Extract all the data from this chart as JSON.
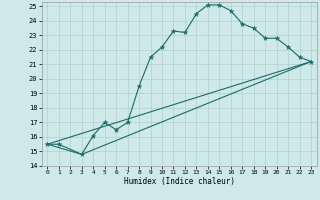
{
  "xlabel": "Humidex (Indice chaleur)",
  "bg_color": "#cfe8e8",
  "line_color": "#1a6b6b",
  "grid_color": "#b0d0d0",
  "xlim": [
    -0.5,
    23.5
  ],
  "ylim": [
    14,
    25.3
  ],
  "xticks": [
    0,
    1,
    2,
    3,
    4,
    5,
    6,
    7,
    8,
    9,
    10,
    11,
    12,
    13,
    14,
    15,
    16,
    17,
    18,
    19,
    20,
    21,
    22,
    23
  ],
  "yticks": [
    14,
    15,
    16,
    17,
    18,
    19,
    20,
    21,
    22,
    23,
    24,
    25
  ],
  "line1_x": [
    0,
    1,
    3,
    4,
    5,
    6,
    7,
    8,
    9,
    10,
    11,
    12,
    13,
    14,
    15,
    16,
    17,
    18,
    19,
    20,
    21,
    22,
    23
  ],
  "line1_y": [
    15.5,
    15.5,
    14.8,
    16.1,
    17.0,
    16.5,
    17.0,
    19.5,
    21.5,
    22.2,
    23.3,
    23.2,
    24.5,
    25.1,
    25.1,
    24.7,
    23.8,
    23.5,
    22.8,
    22.8,
    22.2,
    21.5,
    21.2
  ],
  "line2_x": [
    0,
    3,
    23
  ],
  "line2_y": [
    15.5,
    14.8,
    21.2
  ],
  "line3_x": [
    0,
    23
  ],
  "line3_y": [
    15.5,
    21.2
  ]
}
